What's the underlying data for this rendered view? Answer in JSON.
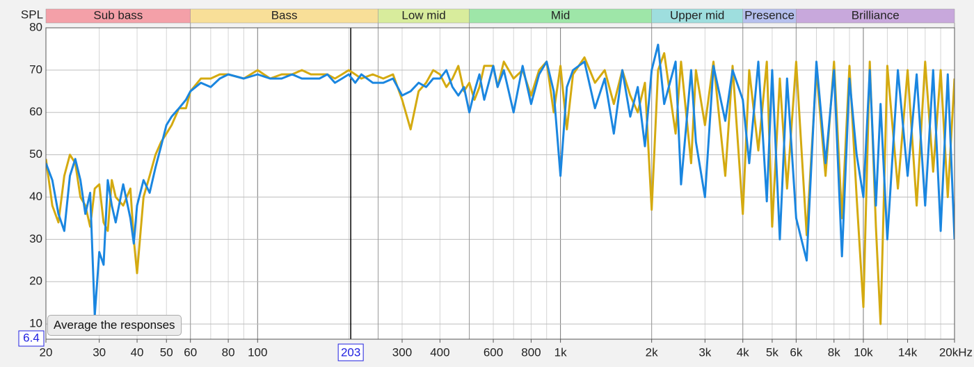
{
  "chart_data": {
    "type": "line",
    "y_label": "SPL",
    "xscale": "log",
    "xlim": [
      20,
      20000
    ],
    "ylim": [
      6.4,
      80
    ],
    "yticks": [
      10,
      20,
      30,
      40,
      50,
      60,
      70,
      80
    ],
    "xticks": [
      20,
      30,
      40,
      50,
      60,
      80,
      100,
      300,
      400,
      600,
      800,
      {
        "value": 1000,
        "label": "1k"
      },
      {
        "value": 2000,
        "label": "2k"
      },
      {
        "value": 3000,
        "label": "3k"
      },
      {
        "value": 4000,
        "label": "4k"
      },
      {
        "value": 5000,
        "label": "5k"
      },
      {
        "value": 6000,
        "label": "6k"
      },
      {
        "value": 8000,
        "label": "8k"
      },
      {
        "value": 10000,
        "label": "10k"
      },
      {
        "value": 14000,
        "label": "14k"
      },
      {
        "value": 20000,
        "label": "20kHz"
      }
    ],
    "xgrid": [
      20,
      30,
      40,
      50,
      60,
      70,
      80,
      90,
      100,
      200,
      300,
      400,
      500,
      600,
      700,
      800,
      900,
      1000,
      2000,
      3000,
      4000,
      5000,
      6000,
      7000,
      8000,
      9000,
      10000,
      12000,
      14000,
      16000,
      18000,
      20000
    ],
    "grid": true,
    "cursor": {
      "x": 203,
      "y": 6.4
    },
    "bands": [
      {
        "name": "Sub bass",
        "start": 20,
        "end": 60,
        "color": "#f4a0a8"
      },
      {
        "name": "Bass",
        "start": 60,
        "end": 250,
        "color": "#f8df98"
      },
      {
        "name": "Low mid",
        "start": 250,
        "end": 500,
        "color": "#d8ec9c"
      },
      {
        "name": "Mid",
        "start": 500,
        "end": 2000,
        "color": "#9ee6a8"
      },
      {
        "name": "Upper mid",
        "start": 2000,
        "end": 4000,
        "color": "#9edede"
      },
      {
        "name": "Presence",
        "start": 4000,
        "end": 6000,
        "color": "#b6c0ee"
      },
      {
        "name": "Brilliance",
        "start": 6000,
        "end": 20000,
        "color": "#c8a8dc"
      }
    ],
    "button": "Average the responses",
    "x": [
      20,
      21,
      22,
      23,
      24,
      25,
      26,
      27,
      28,
      29,
      30,
      31,
      32,
      33,
      34,
      36,
      38,
      39,
      40,
      42,
      44,
      46,
      48,
      50,
      52,
      55,
      58,
      60,
      65,
      70,
      75,
      80,
      90,
      100,
      110,
      120,
      130,
      140,
      150,
      160,
      170,
      180,
      190,
      200,
      210,
      220,
      240,
      260,
      280,
      300,
      320,
      340,
      360,
      380,
      400,
      420,
      440,
      460,
      480,
      500,
      520,
      540,
      560,
      600,
      620,
      650,
      700,
      750,
      800,
      850,
      900,
      950,
      1000,
      1050,
      1100,
      1200,
      1300,
      1400,
      1500,
      1600,
      1700,
      1800,
      1900,
      2000,
      2100,
      2200,
      2400,
      2500,
      2700,
      2800,
      3000,
      3200,
      3500,
      3700,
      4000,
      4200,
      4500,
      4800,
      5000,
      5300,
      5600,
      6000,
      6500,
      7000,
      7500,
      8000,
      8500,
      9000,
      9500,
      10000,
      10500,
      11000,
      11400,
      12000,
      13000,
      14000,
      15000,
      16000,
      17000,
      18000,
      19000,
      20000
    ],
    "series": [
      {
        "color": "#d4aa10",
        "values": [
          49,
          38,
          34,
          45,
          50,
          48,
          40,
          38,
          33,
          42,
          43,
          34,
          32,
          44,
          40,
          38,
          42,
          30,
          22,
          40,
          45,
          50,
          53,
          55,
          57,
          61,
          61,
          65,
          68,
          68,
          69,
          69,
          68,
          70,
          68,
          69,
          69,
          70,
          69,
          69,
          69,
          68,
          69,
          70,
          69,
          68,
          69,
          68,
          69,
          63,
          56,
          65,
          67,
          70,
          69,
          66,
          68,
          71,
          65,
          67,
          63,
          66,
          71,
          71,
          66,
          72,
          68,
          70,
          64,
          70,
          72,
          60,
          71,
          56,
          69,
          73,
          67,
          70,
          62,
          70,
          64,
          60,
          67,
          37,
          70,
          74,
          55,
          72,
          48,
          70,
          57,
          72,
          45,
          71,
          36,
          70,
          51,
          72,
          33,
          68,
          42,
          72,
          31,
          70,
          45,
          72,
          35,
          71,
          40,
          14,
          72,
          33,
          10,
          71,
          42,
          70,
          38,
          72,
          46,
          70,
          40,
          68
        ]
      },
      {
        "color": "#1a86e0",
        "values": [
          48,
          44,
          36,
          32,
          45,
          49,
          44,
          36,
          41,
          12,
          27,
          24,
          44,
          38,
          34,
          43,
          35,
          29,
          38,
          44,
          41,
          47,
          52,
          57,
          59,
          61,
          63,
          65,
          67,
          66,
          68,
          69,
          68,
          69,
          68,
          68,
          69,
          68,
          68,
          68,
          69,
          67,
          68,
          69,
          67,
          69,
          67,
          67,
          68,
          64,
          65,
          67,
          66,
          68,
          68,
          70,
          66,
          64,
          66,
          60,
          65,
          69,
          63,
          71,
          66,
          70,
          60,
          71,
          62,
          69,
          72,
          65,
          45,
          66,
          70,
          72,
          61,
          68,
          55,
          70,
          59,
          66,
          52,
          70,
          76,
          62,
          72,
          43,
          70,
          53,
          40,
          71,
          58,
          70,
          63,
          48,
          72,
          39,
          70,
          30,
          68,
          35,
          25,
          72,
          48,
          70,
          26,
          68,
          50,
          40,
          70,
          38,
          62,
          30,
          70,
          45,
          69,
          38,
          70,
          32,
          69,
          30
        ]
      }
    ]
  }
}
